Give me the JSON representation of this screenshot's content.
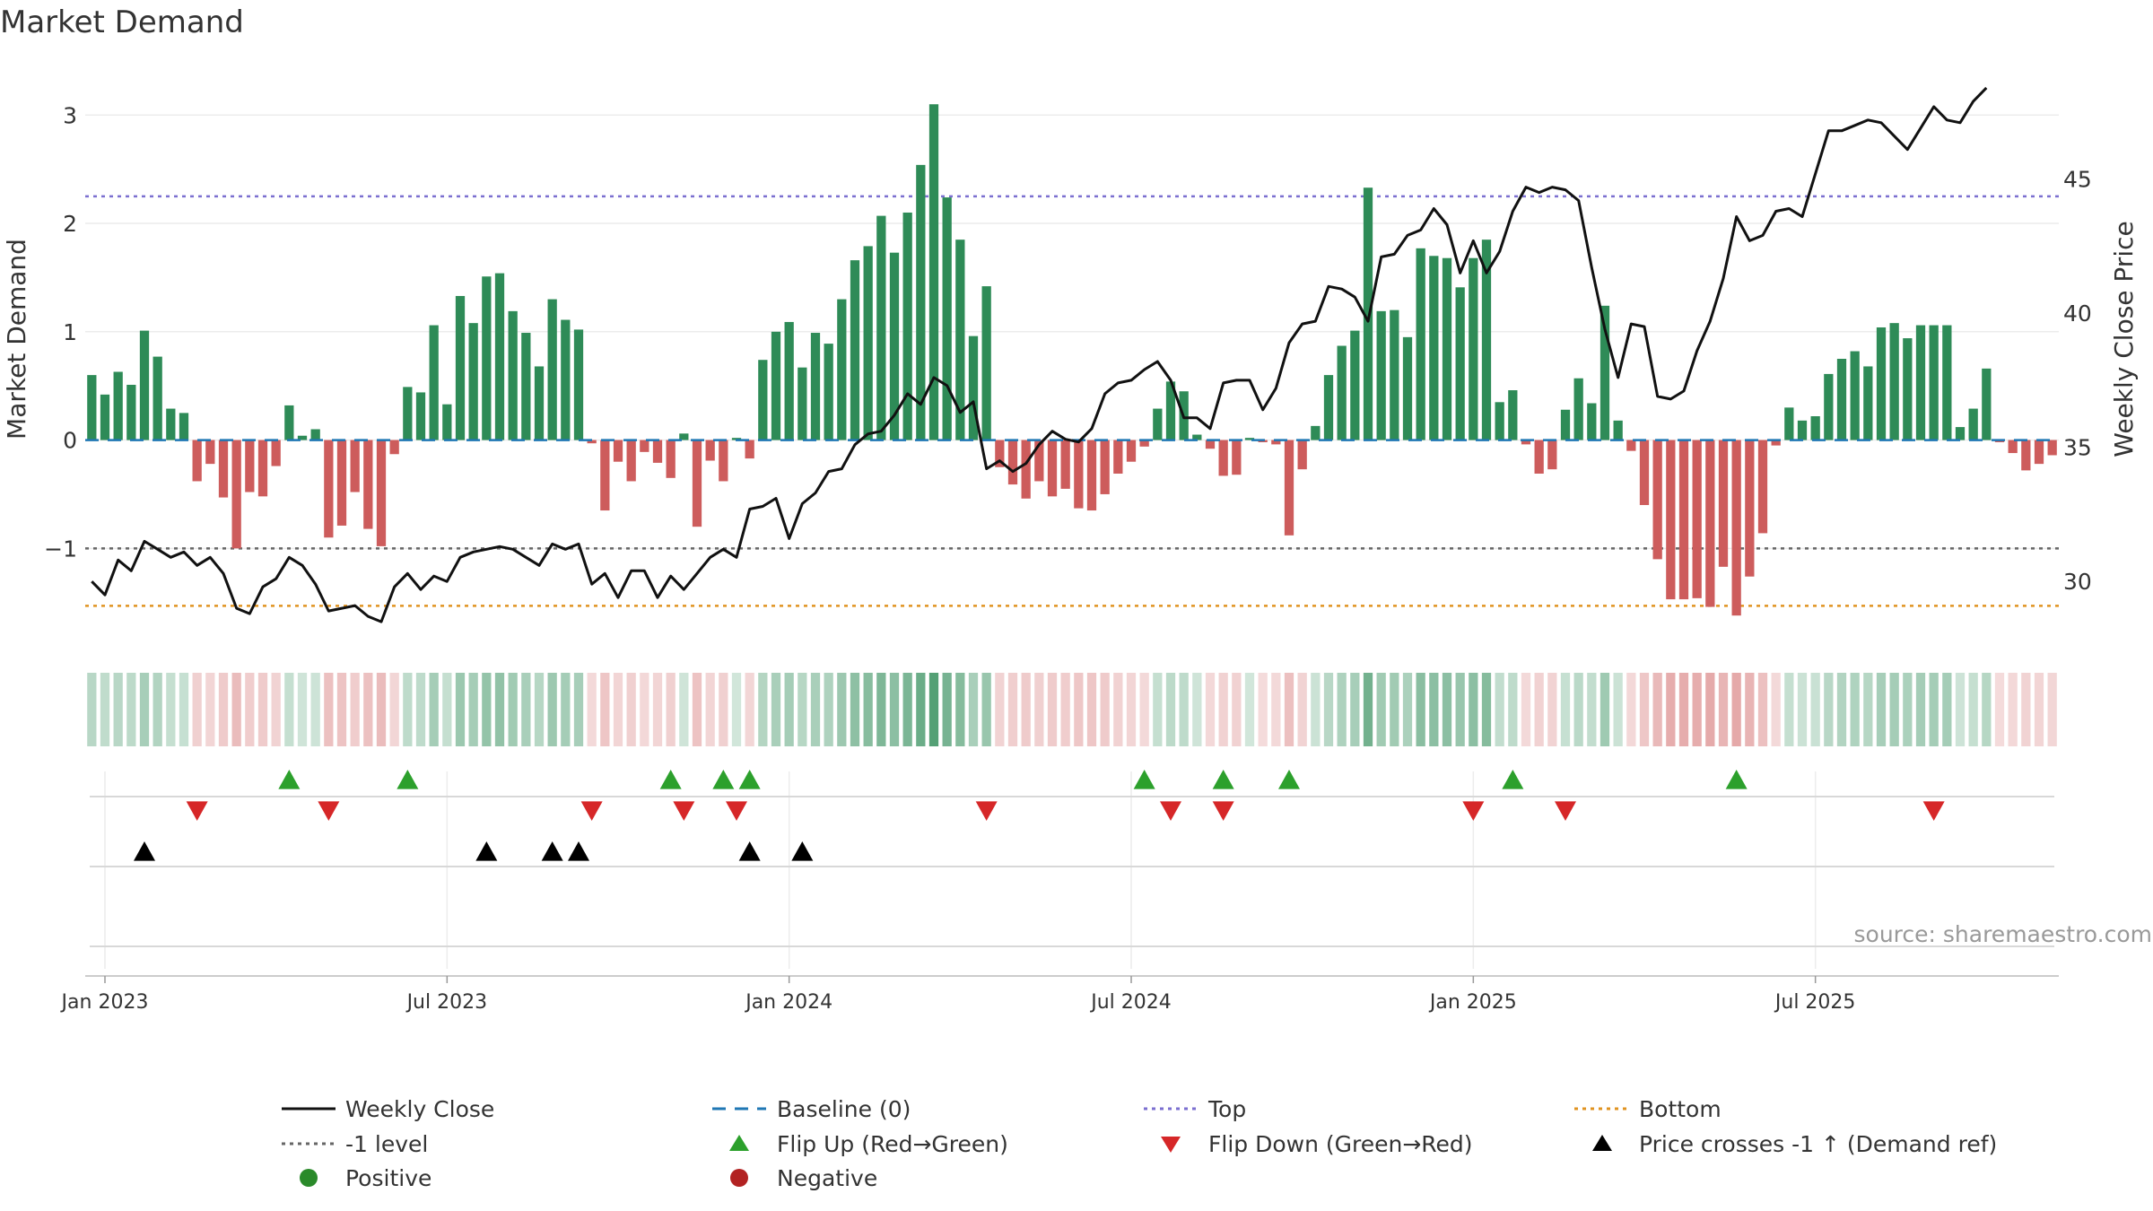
{
  "chart_data": {
    "type": "bar",
    "title": "Market Demand",
    "ylabel": "Market Demand",
    "y2label": "Weekly Close Price",
    "ylim": [
      -1.9,
      3.4
    ],
    "y2lim": [
      27.6,
      49.0
    ],
    "yticks": [
      -1,
      0,
      1,
      2,
      3
    ],
    "y2ticks": [
      30,
      35,
      40,
      45
    ],
    "top_level": 2.25,
    "neg_level": -1.0,
    "bottom_level": -1.53,
    "x_tick_labels": [
      "Jan 2023",
      "Jul 2023",
      "Jan 2024",
      "Jul 2024",
      "Jan 2025",
      "Jul 2025"
    ],
    "x_tick_weeks": [
      1,
      27,
      53,
      79,
      105,
      131
    ],
    "demand": [
      0.6,
      0.42,
      0.63,
      0.51,
      1.01,
      0.77,
      0.29,
      0.25,
      -0.38,
      -0.22,
      -0.53,
      -1.0,
      -0.48,
      -0.52,
      -0.24,
      0.32,
      0.04,
      0.1,
      -0.9,
      -0.79,
      -0.48,
      -0.82,
      -0.98,
      -0.13,
      0.49,
      0.44,
      1.06,
      0.33,
      1.33,
      1.08,
      1.51,
      1.54,
      1.19,
      0.99,
      0.68,
      1.3,
      1.11,
      1.02,
      -0.03,
      -0.65,
      -0.2,
      -0.38,
      -0.11,
      -0.21,
      -0.35,
      0.06,
      -0.8,
      -0.19,
      -0.38,
      0.02,
      -0.17,
      0.74,
      1.0,
      1.09,
      0.67,
      0.99,
      0.89,
      1.3,
      1.66,
      1.79,
      2.07,
      1.73,
      2.1,
      2.54,
      3.1,
      2.24,
      1.85,
      0.96,
      1.42,
      -0.25,
      -0.41,
      -0.54,
      -0.38,
      -0.52,
      -0.45,
      -0.63,
      -0.65,
      -0.5,
      -0.31,
      -0.2,
      -0.06,
      0.29,
      0.54,
      0.45,
      0.05,
      -0.08,
      -0.33,
      -0.32,
      0.02,
      -0.02,
      -0.04,
      -0.88,
      -0.27,
      0.13,
      0.6,
      0.87,
      1.01,
      2.33,
      1.19,
      1.2,
      0.95,
      1.77,
      1.7,
      1.68,
      1.41,
      1.68,
      1.85,
      0.35,
      0.46,
      -0.04,
      -0.31,
      -0.27,
      0.28,
      0.57,
      0.34,
      1.24,
      0.18,
      -0.1,
      -0.6,
      -1.1,
      -1.47,
      -1.47,
      -1.46,
      -1.54,
      -1.17,
      -1.62,
      -1.26,
      -0.86,
      -0.05,
      0.3,
      0.18,
      0.22,
      0.61,
      0.75,
      0.82,
      0.68,
      1.04,
      1.08,
      0.94,
      1.06,
      1.06,
      1.06,
      0.12,
      0.29,
      0.66,
      -0.02,
      -0.12,
      -0.28,
      -0.22,
      -0.14
    ],
    "close": [
      30.0,
      29.5,
      30.8,
      30.4,
      31.5,
      31.2,
      30.9,
      31.1,
      30.6,
      30.9,
      30.3,
      29.0,
      28.8,
      29.8,
      30.1,
      30.9,
      30.6,
      29.9,
      28.9,
      29.0,
      29.1,
      28.7,
      28.5,
      29.8,
      30.3,
      29.7,
      30.2,
      30.0,
      30.9,
      31.1,
      31.2,
      31.3,
      31.2,
      30.9,
      30.6,
      31.4,
      31.2,
      31.4,
      29.9,
      30.3,
      29.4,
      30.4,
      30.4,
      29.4,
      30.2,
      29.7,
      30.3,
      30.9,
      31.2,
      30.9,
      32.7,
      32.8,
      33.1,
      31.6,
      32.9,
      33.3,
      34.1,
      34.2,
      35.1,
      35.5,
      35.6,
      36.2,
      37.0,
      36.6,
      37.6,
      37.3,
      36.3,
      36.7,
      34.2,
      34.5,
      34.1,
      34.4,
      35.1,
      35.6,
      35.3,
      35.2,
      35.7,
      37.0,
      37.4,
      37.5,
      37.9,
      38.2,
      37.5,
      36.1,
      36.1,
      35.7,
      37.4,
      37.5,
      37.5,
      36.4,
      37.2,
      38.9,
      39.6,
      39.7,
      41.0,
      40.9,
      40.6,
      39.7,
      42.1,
      42.2,
      42.9,
      43.1,
      43.9,
      43.3,
      41.5,
      42.7,
      41.5,
      42.3,
      43.8,
      44.7,
      44.5,
      44.7,
      44.6,
      44.2,
      41.7,
      39.4,
      37.6,
      39.6,
      39.5,
      36.9,
      36.8,
      37.1,
      38.6,
      39.7,
      41.3,
      43.6,
      42.7,
      42.9,
      43.8,
      43.9,
      43.6,
      45.2,
      46.8,
      46.8,
      47.0,
      47.2,
      47.1,
      46.6,
      46.1,
      46.9,
      47.7,
      47.2,
      47.1,
      47.9,
      48.4
    ],
    "flip_up_weeks": [
      15,
      24,
      44,
      48,
      50,
      80,
      86,
      91,
      108,
      125
    ],
    "flip_down_weeks": [
      8,
      18,
      38,
      45,
      49,
      68,
      82,
      86,
      105,
      112,
      140
    ],
    "price_cross_weeks": [
      4,
      30,
      35,
      37,
      50,
      54
    ],
    "legend": {
      "weekly_close": "Weekly Close",
      "baseline": "Baseline (0)",
      "top": "Top",
      "bottom": "Bottom",
      "neg_level": "-1 level",
      "flip_up": "Flip Up (Red→Green)",
      "flip_down": "Flip Down (Green→Red)",
      "price_cross": "Price crosses -1 ↑ (Demand ref)",
      "positive": "Positive",
      "negative": "Negative"
    },
    "source": "source: sharemaestro.com"
  },
  "colors": {
    "positive": "#2e8b57",
    "negative": "#cd5c5c",
    "close": "#111111",
    "top": "#7b6fd0",
    "neg_level": "#666666",
    "bottom": "#e09320",
    "baseline": "#1f77b4",
    "flip_up": "#2ca02c",
    "flip_down": "#d62728",
    "price_cross": "#000000",
    "positive_dot": "#2a8a2a",
    "negative_dot": "#b22222"
  }
}
